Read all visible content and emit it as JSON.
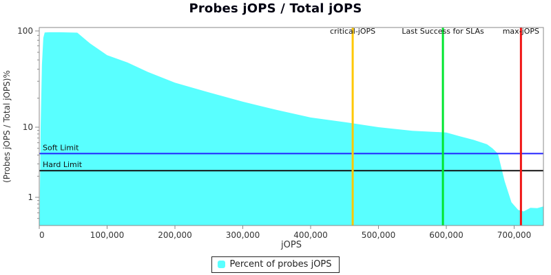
{
  "title": "Probes jOPS / Total jOPS",
  "legend": {
    "label": "Percent of probes jOPS",
    "swatch_color": "#59FFFF"
  },
  "chart_data": {
    "type": "area",
    "title": "Probes jOPS / Total jOPS",
    "xlabel": "jOPS",
    "ylabel": "(Probes jOPS / Total jOPS)%",
    "x_scale": "linear",
    "y_scale": "log",
    "xlim": [
      0,
      744000
    ],
    "ylim": [
      0.4,
      110
    ],
    "grid": false,
    "plot_border_color": "#8a8a8a",
    "tick_text_color": "#333333",
    "xticks": [
      {
        "value": 0,
        "label": "0"
      },
      {
        "value": 100000,
        "label": "100,000"
      },
      {
        "value": 200000,
        "label": "200,000"
      },
      {
        "value": 300000,
        "label": "300,000"
      },
      {
        "value": 400000,
        "label": "400,000"
      },
      {
        "value": 500000,
        "label": "500,000"
      },
      {
        "value": 600000,
        "label": "600,000"
      },
      {
        "value": 700000,
        "label": "700,000"
      }
    ],
    "yticks": [
      {
        "value": 100,
        "label": "100"
      },
      {
        "value": 10,
        "label": "10"
      },
      {
        "value": 1,
        "label": "1"
      }
    ],
    "yticks_minor": [
      90,
      80,
      70,
      60,
      50,
      40,
      30,
      20,
      9,
      8,
      7,
      6,
      5,
      4,
      3,
      2,
      0.9,
      0.8,
      0.7,
      0.6,
      0.5
    ],
    "series": [
      {
        "name": "Percent of probes jOPS",
        "color": "#59FFFF",
        "points": [
          [
            500,
            0.45
          ],
          [
            2000,
            10
          ],
          [
            4000,
            45
          ],
          [
            6000,
            85
          ],
          [
            8000,
            96.5
          ],
          [
            15000,
            97
          ],
          [
            30000,
            97
          ],
          [
            56000,
            96
          ],
          [
            75000,
            74
          ],
          [
            100000,
            56
          ],
          [
            130000,
            47
          ],
          [
            160000,
            37.5
          ],
          [
            200000,
            29
          ],
          [
            250000,
            23
          ],
          [
            300000,
            18.4
          ],
          [
            350000,
            15.1
          ],
          [
            400000,
            12.6
          ],
          [
            450000,
            11.3
          ],
          [
            500000,
            10.0
          ],
          [
            550000,
            8.9
          ],
          [
            600000,
            8.4
          ],
          [
            620000,
            7.4
          ],
          [
            640000,
            6.6
          ],
          [
            660000,
            5.7
          ],
          [
            668000,
            5.0
          ],
          [
            676000,
            4.2
          ],
          [
            686000,
            1.7
          ],
          [
            696000,
            0.85
          ],
          [
            706000,
            0.66
          ],
          [
            714000,
            0.63
          ],
          [
            724000,
            0.71
          ],
          [
            734000,
            0.7
          ],
          [
            744000,
            0.74
          ]
        ]
      }
    ],
    "marker_lines": [
      {
        "label": "critical-jOPS",
        "value": 462000,
        "color": "#FFC800"
      },
      {
        "label": "Last Success for SLAs",
        "value": 595000,
        "color": "#00E62E"
      },
      {
        "label": "max-jOPS",
        "value": 710000,
        "color": "#F01414"
      }
    ],
    "limit_lines": [
      {
        "label": "Soft Limit",
        "value": 4.2,
        "color": "#2222FF"
      },
      {
        "label": "Hard Limit",
        "value": 2.4,
        "color": "#111111"
      }
    ],
    "legend": {
      "position": "bottom",
      "entries": [
        {
          "label": "Percent of probes jOPS",
          "color": "#59FFFF"
        }
      ]
    }
  }
}
